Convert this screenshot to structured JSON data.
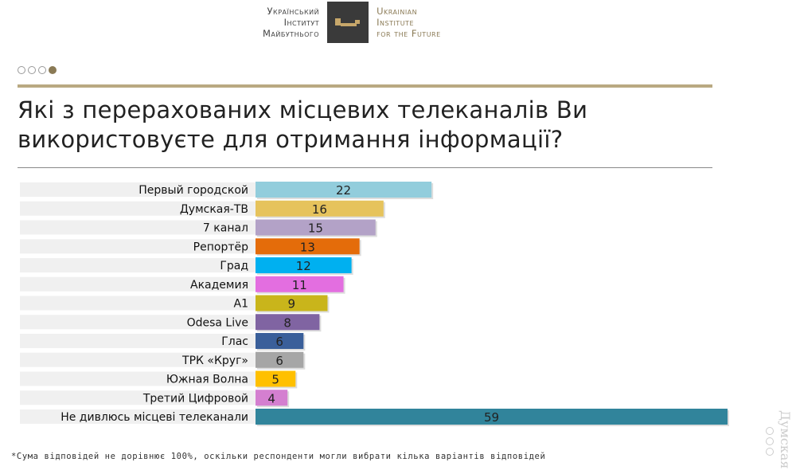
{
  "header": {
    "logo_ua": [
      "Український",
      "Інститут",
      "Майбутнього"
    ],
    "logo_en": [
      "Ukrainian",
      "Institute",
      "for the Future"
    ]
  },
  "pagination": {
    "total": 4,
    "active": 4
  },
  "chart_data": {
    "type": "bar",
    "orientation": "horizontal",
    "title": "Які з перерахованих місцевих телеканалів Ви використовуєте для отримання інформації?",
    "categories": [
      "Первый городской",
      "Думская-ТВ",
      "7 канал",
      "Репортёр",
      "Град",
      "Академия",
      "А1",
      "Odesa Live",
      "Глас",
      "ТРК «Круг»",
      "Южная Волна",
      "Третий Цифровой",
      "Не дивлюсь місцеві телеканали"
    ],
    "values": [
      22,
      16,
      15,
      13,
      12,
      11,
      9,
      8,
      6,
      6,
      5,
      4,
      59
    ],
    "colors": [
      "#92cddc",
      "#e6c35c",
      "#b3a2c7",
      "#e46c0a",
      "#00b0f0",
      "#e36ee0",
      "#c9b51b",
      "#8064a2",
      "#3a5f9a",
      "#a6a6a6",
      "#ffc000",
      "#d47fd0",
      "#31849b"
    ],
    "xlim": [
      0,
      59
    ],
    "grid": false,
    "legend": "none"
  },
  "footnote": "*Сума відповідей не дорівнює 100%, оскільки респонденти могли вибрати кілька варіантів відповідей",
  "watermark": "Думская"
}
